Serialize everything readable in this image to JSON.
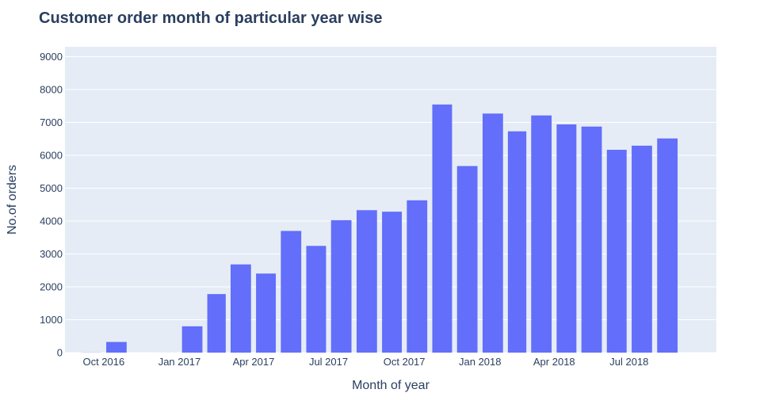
{
  "colors": {
    "bar": "#636efa",
    "plot_background": "#e5ecf6",
    "gridline": "#ffffff",
    "text": "#2a3f5f"
  },
  "chart_data": {
    "type": "bar",
    "title": "Customer order month of particular year wise",
    "xlabel": "Month of year",
    "ylabel": "No.of orders",
    "ylim": [
      0,
      9300
    ],
    "xlim": [
      "2016-08-15",
      "2018-10-15"
    ],
    "grid": true,
    "legend": "none",
    "yticks": [
      0,
      1000,
      2000,
      3000,
      4000,
      5000,
      6000,
      7000,
      8000,
      9000
    ],
    "ytick_labels": [
      "0",
      "1000",
      "2000",
      "3000",
      "4000",
      "5000",
      "6000",
      "7000",
      "8000",
      "9000"
    ],
    "xticks": [
      {
        "date": "2016-10-01",
        "label": "Oct 2016"
      },
      {
        "date": "2017-01-01",
        "label": "Jan 2017"
      },
      {
        "date": "2017-04-01",
        "label": "Apr 2017"
      },
      {
        "date": "2017-07-01",
        "label": "Jul 2017"
      },
      {
        "date": "2017-10-01",
        "label": "Oct 2017"
      },
      {
        "date": "2018-01-01",
        "label": "Jan 2018"
      },
      {
        "date": "2018-04-01",
        "label": "Apr 2018"
      },
      {
        "date": "2018-07-01",
        "label": "Jul 2018"
      }
    ],
    "x": [
      "2016-09",
      "2016-10",
      "2016-12",
      "2017-01",
      "2017-02",
      "2017-03",
      "2017-04",
      "2017-05",
      "2017-06",
      "2017-07",
      "2017-08",
      "2017-09",
      "2017-10",
      "2017-11",
      "2017-12",
      "2018-01",
      "2018-02",
      "2018-03",
      "2018-04",
      "2018-05",
      "2018-06",
      "2018-07",
      "2018-08"
    ],
    "values": [
      4,
      324,
      1,
      800,
      1780,
      2682,
      2404,
      3700,
      3245,
      4026,
      4331,
      4285,
      4631,
      7544,
      5673,
      7269,
      6728,
      7211,
      6939,
      6873,
      6167,
      6292,
      6512
    ]
  }
}
